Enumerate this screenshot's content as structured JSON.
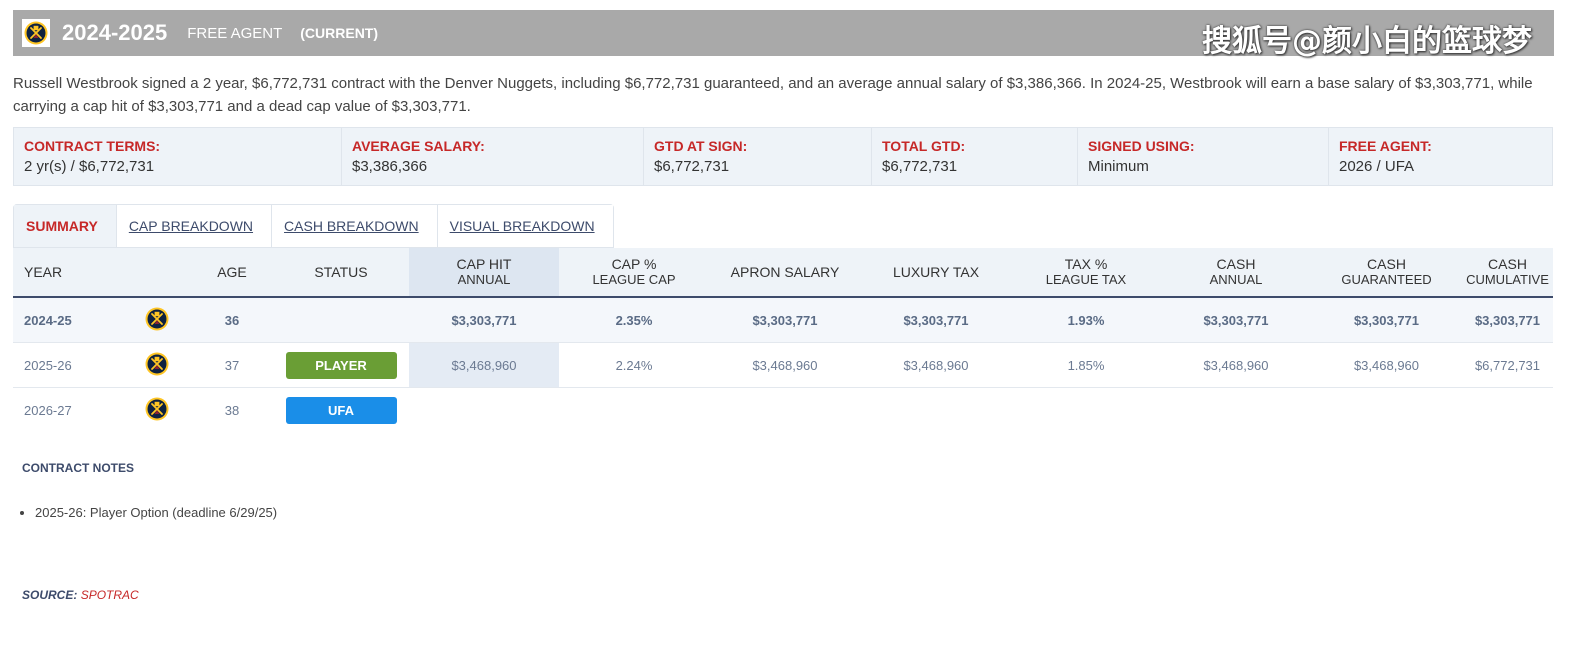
{
  "header": {
    "season": "2024-2025",
    "free_agent": "FREE AGENT",
    "current": "(CURRENT)",
    "watermark": "搜狐号@颜小白的篮球梦",
    "background": "#a9a9a9"
  },
  "description": "Russell Westbrook signed a 2 year, $6,772,731 contract with the Denver Nuggets, including $6,772,731 guaranteed, and an average annual salary of $3,386,366. In 2024-25, Westbrook will earn a base salary of $3,303,771, while carrying a cap hit of $3,303,771 and a dead cap value of $3,303,771.",
  "terms": [
    {
      "label": "CONTRACT TERMS:",
      "value": "2 yr(s) / $6,772,731"
    },
    {
      "label": "AVERAGE SALARY:",
      "value": "$3,386,366"
    },
    {
      "label": "GTD AT SIGN:",
      "value": "$6,772,731"
    },
    {
      "label": "TOTAL GTD:",
      "value": "$6,772,731"
    },
    {
      "label": "SIGNED USING:",
      "value": "Minimum"
    },
    {
      "label": "FREE AGENT:",
      "value": "2026 / UFA"
    }
  ],
  "tabs": [
    "SUMMARY",
    "CAP BREAKDOWN",
    "CASH BREAKDOWN",
    "VISUAL BREAKDOWN"
  ],
  "table": {
    "headers": {
      "year": "YEAR",
      "age": "AGE",
      "status": "STATUS",
      "cap_hit": [
        "CAP HIT",
        "ANNUAL"
      ],
      "cap_pct": [
        "CAP %",
        "LEAGUE CAP"
      ],
      "apron": "APRON SALARY",
      "lux": "LUXURY TAX",
      "tax_pct": [
        "TAX %",
        "LEAGUE TAX"
      ],
      "cash_annual": [
        "CASH",
        "ANNUAL"
      ],
      "cash_gtd": [
        "CASH",
        "GUARANTEED"
      ],
      "cash_cum": [
        "CASH",
        "CUMULATIVE"
      ]
    },
    "rows": [
      {
        "year": "2024-25",
        "age": "36",
        "status": "",
        "cap_hit": "$3,303,771",
        "cap_pct": "2.35%",
        "apron": "$3,303,771",
        "lux": "$3,303,771",
        "tax_pct": "1.93%",
        "cash_annual": "$3,303,771",
        "cash_gtd": "$3,303,771",
        "cash_cum": "$3,303,771"
      },
      {
        "year": "2025-26",
        "age": "37",
        "status": "PLAYER",
        "cap_hit": "$3,468,960",
        "cap_pct": "2.24%",
        "apron": "$3,468,960",
        "lux": "$3,468,960",
        "tax_pct": "1.85%",
        "cash_annual": "$3,468,960",
        "cash_gtd": "$3,468,960",
        "cash_cum": "$6,772,731"
      },
      {
        "year": "2026-27",
        "age": "38",
        "status": "UFA"
      }
    ]
  },
  "notes": {
    "title": "CONTRACT NOTES",
    "items": [
      "2025-26: Player Option (deadline 6/29/25)"
    ]
  },
  "source": {
    "label": "SOURCE:",
    "value": "SPOTRAC"
  },
  "colors": {
    "accent": "#c62828",
    "player": "#6a9e35",
    "ufa": "#1a8ee8",
    "nuggets_gold": "#fec524",
    "nuggets_navy": "#0e2240"
  },
  "icons": [
    "nuggets-logo-icon"
  ]
}
